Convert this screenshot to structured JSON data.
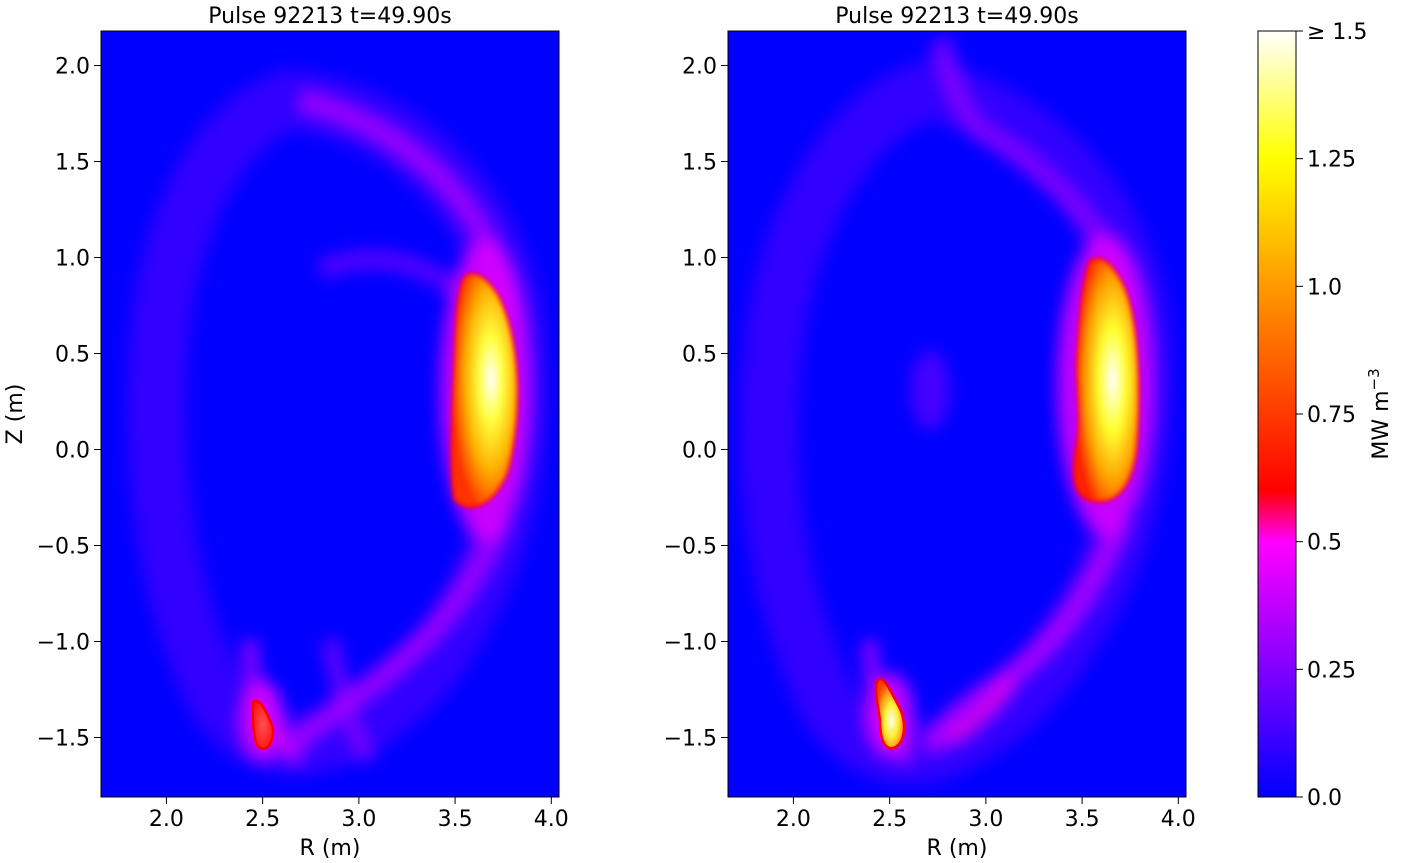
{
  "chart_data": [
    {
      "type": "heatmap",
      "title": "Pulse 92213 t=49.90s",
      "xlabel": "R (m)",
      "ylabel": "Z (m)",
      "xlim": [
        1.66,
        4.04
      ],
      "ylim": [
        -1.81,
        2.18
      ],
      "xticks": [
        2.0,
        2.5,
        3.0,
        3.5,
        4.0
      ],
      "xtick_labels": [
        "2.0",
        "2.5",
        "3.0",
        "3.5",
        "4.0"
      ],
      "yticks": [
        2.0,
        1.5,
        1.0,
        0.5,
        0.0,
        -0.5,
        -1.0,
        -1.5
      ],
      "ytick_labels": [
        "2.0",
        "1.5",
        "1.0",
        "0.5",
        "0.0",
        "−0.5",
        "−1.0",
        "−1.5"
      ],
      "background_value": 0.0,
      "features": [
        {
          "kind": "hot-spot",
          "R": 3.66,
          "Z": 0.3,
          "peak": 1.5,
          "R_extent": [
            3.52,
            3.84
          ],
          "Z_extent": [
            -0.32,
            0.92
          ]
        },
        {
          "kind": "hot-spot",
          "R": 2.5,
          "Z": -1.42,
          "peak": 0.85,
          "R_extent": [
            2.44,
            2.56
          ],
          "Z_extent": [
            -1.6,
            -1.3
          ]
        },
        {
          "kind": "glow-ring",
          "R_center": 2.7,
          "Z_center": 0.05,
          "peak": 0.3
        }
      ]
    },
    {
      "type": "heatmap",
      "title": "Pulse 92213 t=49.90s",
      "xlabel": "R (m)",
      "ylabel": "",
      "xlim": [
        1.66,
        4.04
      ],
      "ylim": [
        -1.81,
        2.18
      ],
      "xticks": [
        2.0,
        2.5,
        3.0,
        3.5,
        4.0
      ],
      "xtick_labels": [
        "2.0",
        "2.5",
        "3.0",
        "3.5",
        "4.0"
      ],
      "yticks": [
        2.0,
        1.5,
        1.0,
        0.5,
        0.0,
        -0.5,
        -1.0,
        -1.5
      ],
      "ytick_labels": [
        "2.0",
        "1.5",
        "1.0",
        "0.5",
        "0.0",
        "−0.5",
        "−1.0",
        "−1.5"
      ],
      "background_value": 0.0,
      "features": [
        {
          "kind": "hot-spot",
          "R": 3.64,
          "Z": 0.35,
          "peak": 1.5,
          "R_extent": [
            3.46,
            3.8
          ],
          "Z_extent": [
            -0.3,
            1.0
          ]
        },
        {
          "kind": "hot-spot",
          "R": 2.52,
          "Z": -1.42,
          "peak": 1.3,
          "R_extent": [
            2.44,
            2.6
          ],
          "Z_extent": [
            -1.6,
            -1.22
          ]
        },
        {
          "kind": "glow-ring",
          "R_center": 2.75,
          "Z_center": 0.1,
          "peak": 0.3
        }
      ]
    }
  ],
  "colorbar": {
    "label": "MW m",
    "label_superscript": "−3",
    "range": [
      0.0,
      1.5
    ],
    "ticks": [
      0.0,
      0.25,
      0.5,
      0.75,
      1.0,
      1.25,
      1.5
    ],
    "tick_labels": [
      "0.0",
      "0.25",
      "0.5",
      "0.75",
      "1.0",
      "1.25",
      "≥ 1.5"
    ],
    "stops": [
      {
        "v": 0.0,
        "color": "#0000ff"
      },
      {
        "v": 0.25,
        "color": "#7f00ff"
      },
      {
        "v": 0.5,
        "color": "#ff00ff"
      },
      {
        "v": 0.6,
        "color": "#ff0000"
      },
      {
        "v": 1.0,
        "color": "#ff9900"
      },
      {
        "v": 1.25,
        "color": "#ffff00"
      },
      {
        "v": 1.5,
        "color": "#ffffff"
      }
    ]
  }
}
